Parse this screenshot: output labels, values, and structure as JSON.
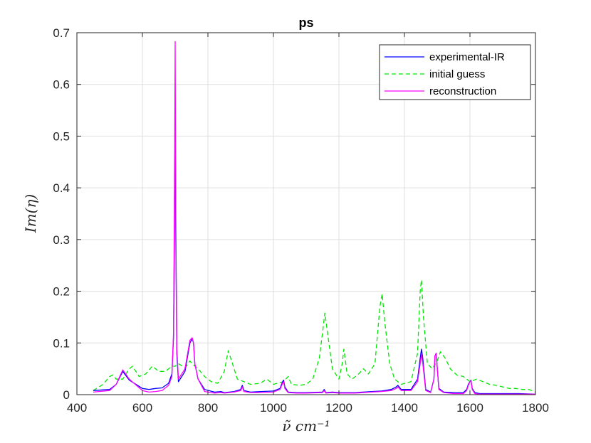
{
  "chart_data": {
    "type": "line",
    "title": "ps",
    "xlabel": "ν̃ cm⁻¹",
    "ylabel": "Im(η)",
    "xlim": [
      400,
      1800
    ],
    "ylim": [
      0,
      0.7
    ],
    "xticks": [
      "400",
      "600",
      "800",
      "1000",
      "1200",
      "1400",
      "1600",
      "1800"
    ],
    "yticks": [
      "0",
      "0.1",
      "0.2",
      "0.3",
      "0.4",
      "0.5",
      "0.6",
      "0.7"
    ],
    "grid": true,
    "legend_position": "top-right",
    "series": [
      {
        "name": "experimental-IR",
        "color": "#0000ff",
        "dash": "solid",
        "x": [
          450,
          500,
          520,
          540,
          560,
          600,
          620,
          640,
          660,
          680,
          690,
          695,
          698,
          700,
          702,
          705,
          710,
          730,
          745,
          752,
          756,
          760,
          770,
          790,
          820,
          840,
          850,
          880,
          900,
          905,
          910,
          930,
          960,
          1000,
          1020,
          1028,
          1031,
          1035,
          1045,
          1070,
          1100,
          1150,
          1155,
          1160,
          1180,
          1200,
          1250,
          1300,
          1330,
          1360,
          1375,
          1380,
          1390,
          1420,
          1440,
          1448,
          1452,
          1456,
          1465,
          1480,
          1490,
          1493,
          1497,
          1505,
          1520,
          1550,
          1580,
          1590,
          1595,
          1600,
          1603,
          1607,
          1615,
          1630,
          1650,
          1700,
          1750,
          1800
        ],
        "y": [
          0.008,
          0.01,
          0.02,
          0.045,
          0.028,
          0.012,
          0.01,
          0.012,
          0.013,
          0.022,
          0.04,
          0.11,
          0.32,
          0.565,
          0.3,
          0.08,
          0.025,
          0.045,
          0.1,
          0.108,
          0.1,
          0.06,
          0.03,
          0.01,
          0.005,
          0.006,
          0.004,
          0.006,
          0.01,
          0.018,
          0.008,
          0.005,
          0.006,
          0.007,
          0.012,
          0.025,
          0.028,
          0.015,
          0.005,
          0.004,
          0.004,
          0.005,
          0.01,
          0.004,
          0.005,
          0.004,
          0.004,
          0.006,
          0.007,
          0.01,
          0.015,
          0.018,
          0.01,
          0.01,
          0.03,
          0.07,
          0.088,
          0.07,
          0.01,
          0.005,
          0.03,
          0.075,
          0.08,
          0.012,
          0.005,
          0.004,
          0.004,
          0.01,
          0.02,
          0.025,
          0.028,
          0.012,
          0.004,
          0.002,
          0.002,
          0.002,
          0.002,
          0.001
        ]
      },
      {
        "name": "initial guess",
        "color": "#00e600",
        "dash": "dashed",
        "x": [
          450,
          480,
          500,
          510,
          520,
          540,
          560,
          570,
          590,
          610,
          630,
          650,
          670,
          690,
          700,
          710,
          730,
          745,
          755,
          770,
          790,
          810,
          830,
          850,
          862,
          875,
          890,
          910,
          930,
          960,
          980,
          1000,
          1030,
          1045,
          1055,
          1080,
          1100,
          1120,
          1140,
          1150,
          1157,
          1165,
          1180,
          1200,
          1210,
          1215,
          1225,
          1240,
          1260,
          1275,
          1290,
          1310,
          1325,
          1332,
          1340,
          1355,
          1370,
          1390,
          1420,
          1440,
          1448,
          1452,
          1458,
          1470,
          1485,
          1500,
          1510,
          1525,
          1540,
          1560,
          1580,
          1600,
          1620,
          1640,
          1660,
          1680,
          1700,
          1720,
          1740,
          1760,
          1780,
          1800
        ],
        "y": [
          0.008,
          0.02,
          0.035,
          0.038,
          0.03,
          0.03,
          0.05,
          0.055,
          0.035,
          0.04,
          0.055,
          0.045,
          0.045,
          0.055,
          0.055,
          0.06,
          0.052,
          0.065,
          0.058,
          0.05,
          0.035,
          0.025,
          0.022,
          0.045,
          0.085,
          0.06,
          0.03,
          0.025,
          0.02,
          0.022,
          0.03,
          0.02,
          0.025,
          0.035,
          0.02,
          0.018,
          0.02,
          0.03,
          0.07,
          0.12,
          0.158,
          0.12,
          0.05,
          0.03,
          0.06,
          0.088,
          0.04,
          0.03,
          0.04,
          0.05,
          0.04,
          0.06,
          0.17,
          0.195,
          0.14,
          0.06,
          0.03,
          0.02,
          0.025,
          0.08,
          0.2,
          0.222,
          0.15,
          0.06,
          0.05,
          0.065,
          0.083,
          0.07,
          0.05,
          0.038,
          0.035,
          0.025,
          0.03,
          0.025,
          0.02,
          0.018,
          0.015,
          0.012,
          0.012,
          0.01,
          0.01,
          0.005
        ]
      },
      {
        "name": "reconstruction",
        "color": "#ff00ff",
        "dash": "solid",
        "x": [
          450,
          500,
          520,
          540,
          560,
          600,
          620,
          640,
          660,
          680,
          690,
          695,
          698,
          700,
          702,
          705,
          710,
          730,
          745,
          752,
          756,
          760,
          770,
          790,
          820,
          840,
          850,
          880,
          900,
          905,
          910,
          930,
          960,
          1000,
          1020,
          1028,
          1031,
          1035,
          1045,
          1070,
          1100,
          1150,
          1155,
          1160,
          1180,
          1200,
          1250,
          1300,
          1330,
          1360,
          1375,
          1380,
          1390,
          1420,
          1440,
          1448,
          1452,
          1456,
          1465,
          1480,
          1490,
          1493,
          1497,
          1505,
          1520,
          1550,
          1580,
          1590,
          1595,
          1600,
          1603,
          1607,
          1615,
          1630,
          1650,
          1700,
          1750,
          1800
        ],
        "y": [
          0.005,
          0.008,
          0.02,
          0.048,
          0.03,
          0.008,
          0.005,
          0.006,
          0.008,
          0.018,
          0.035,
          0.12,
          0.4,
          0.683,
          0.35,
          0.09,
          0.03,
          0.05,
          0.105,
          0.11,
          0.1,
          0.06,
          0.03,
          0.006,
          0.003,
          0.004,
          0.003,
          0.005,
          0.008,
          0.015,
          0.006,
          0.004,
          0.004,
          0.005,
          0.01,
          0.022,
          0.025,
          0.012,
          0.004,
          0.003,
          0.003,
          0.004,
          0.008,
          0.003,
          0.004,
          0.003,
          0.003,
          0.005,
          0.006,
          0.008,
          0.012,
          0.015,
          0.008,
          0.008,
          0.025,
          0.06,
          0.078,
          0.06,
          0.008,
          0.004,
          0.03,
          0.075,
          0.08,
          0.01,
          0.004,
          0.002,
          0.002,
          0.008,
          0.018,
          0.025,
          0.027,
          0.01,
          0.002,
          0.001,
          0.001,
          0.001,
          0.001,
          0.001
        ]
      }
    ]
  }
}
